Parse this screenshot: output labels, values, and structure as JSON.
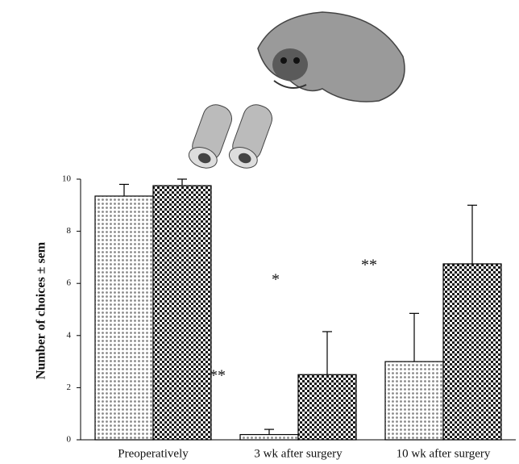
{
  "chart_data": {
    "type": "bar",
    "y_label": "Number of choices ± sem",
    "categories": [
      "Preoperatively",
      "3 wk after surgery",
      "10 wk after surgery"
    ],
    "series": [
      {
        "color": "#cfcfcf",
        "pattern": "dots",
        "values": [
          9.35,
          0.2,
          3.0
        ],
        "errors": [
          0.45,
          0.2,
          1.85
        ]
      },
      {
        "color": "#2a2a2a",
        "pattern": "checks",
        "values": [
          9.75,
          2.5,
          6.75
        ],
        "errors": [
          0.25,
          1.65,
          2.25
        ]
      }
    ],
    "annotations": [
      "**",
      "*",
      "**"
    ],
    "ylim": [
      0,
      10
    ],
    "yticks": [
      0,
      2,
      4,
      6,
      8,
      10
    ]
  }
}
